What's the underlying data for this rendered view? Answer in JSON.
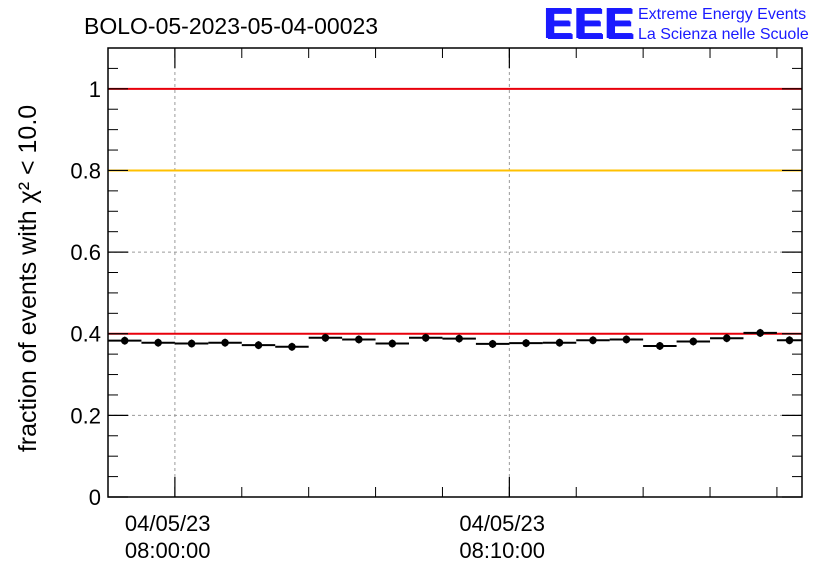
{
  "header": {
    "title": "BOLO-05-2023-05-04-00023"
  },
  "logo": {
    "letters": "EEE",
    "line1": "Extreme Energy Events",
    "line2": "La Scienza nelle Scuole",
    "color": "#1a1aff"
  },
  "chart_data": {
    "type": "scatter",
    "title": "BOLO-05-2023-05-04-00023",
    "ylabel": "fraction of events with χ² < 10.0",
    "xlabel": "",
    "ylim": [
      0,
      1.1
    ],
    "xlim": [
      "2023-05-04 07:58:00",
      "2023-05-04 08:18:45"
    ],
    "yticks": [
      {
        "value": 0,
        "label": "0"
      },
      {
        "value": 0.2,
        "label": "0.2"
      },
      {
        "value": 0.4,
        "label": "0.4"
      },
      {
        "value": 0.6,
        "label": "0.6"
      },
      {
        "value": 0.8,
        "label": "0.8"
      },
      {
        "value": 1,
        "label": "1"
      }
    ],
    "xticks": [
      {
        "time": "2023-05-04 08:00:00",
        "date_label": "04/05/23",
        "time_label": "08:00:00"
      },
      {
        "time": "2023-05-04 08:10:00",
        "date_label": "04/05/23",
        "time_label": "08:10:00"
      }
    ],
    "grid": true,
    "reference_lines": [
      {
        "value": 1.0,
        "color": "#e8000b"
      },
      {
        "value": 0.8,
        "color": "#ffc000"
      },
      {
        "value": 0.4,
        "color": "#e8000b"
      }
    ],
    "marker_color": "#000000",
    "points": [
      {
        "start": "2023-05-04 07:58:00",
        "end": "2023-05-04 07:59:00",
        "y": 0.383
      },
      {
        "start": "2023-05-04 07:59:00",
        "end": "2023-05-04 08:00:00",
        "y": 0.378
      },
      {
        "start": "2023-05-04 08:00:00",
        "end": "2023-05-04 08:01:00",
        "y": 0.376
      },
      {
        "start": "2023-05-04 08:01:00",
        "end": "2023-05-04 08:02:00",
        "y": 0.378
      },
      {
        "start": "2023-05-04 08:02:00",
        "end": "2023-05-04 08:03:00",
        "y": 0.372
      },
      {
        "start": "2023-05-04 08:03:00",
        "end": "2023-05-04 08:04:00",
        "y": 0.368
      },
      {
        "start": "2023-05-04 08:04:00",
        "end": "2023-05-04 08:05:00",
        "y": 0.39
      },
      {
        "start": "2023-05-04 08:05:00",
        "end": "2023-05-04 08:06:00",
        "y": 0.386
      },
      {
        "start": "2023-05-04 08:06:00",
        "end": "2023-05-04 08:07:00",
        "y": 0.376
      },
      {
        "start": "2023-05-04 08:07:00",
        "end": "2023-05-04 08:08:00",
        "y": 0.39
      },
      {
        "start": "2023-05-04 08:08:00",
        "end": "2023-05-04 08:09:00",
        "y": 0.388
      },
      {
        "start": "2023-05-04 08:09:00",
        "end": "2023-05-04 08:10:00",
        "y": 0.375
      },
      {
        "start": "2023-05-04 08:10:00",
        "end": "2023-05-04 08:11:00",
        "y": 0.377
      },
      {
        "start": "2023-05-04 08:11:00",
        "end": "2023-05-04 08:12:00",
        "y": 0.378
      },
      {
        "start": "2023-05-04 08:12:00",
        "end": "2023-05-04 08:13:00",
        "y": 0.384
      },
      {
        "start": "2023-05-04 08:13:00",
        "end": "2023-05-04 08:14:00",
        "y": 0.386
      },
      {
        "start": "2023-05-04 08:14:00",
        "end": "2023-05-04 08:15:00",
        "y": 0.37
      },
      {
        "start": "2023-05-04 08:15:00",
        "end": "2023-05-04 08:16:00",
        "y": 0.381
      },
      {
        "start": "2023-05-04 08:16:00",
        "end": "2023-05-04 08:17:00",
        "y": 0.389
      },
      {
        "start": "2023-05-04 08:17:00",
        "end": "2023-05-04 08:18:00",
        "y": 0.402
      },
      {
        "start": "2023-05-04 08:18:00",
        "end": "2023-05-04 08:18:45",
        "y": 0.384
      }
    ]
  }
}
